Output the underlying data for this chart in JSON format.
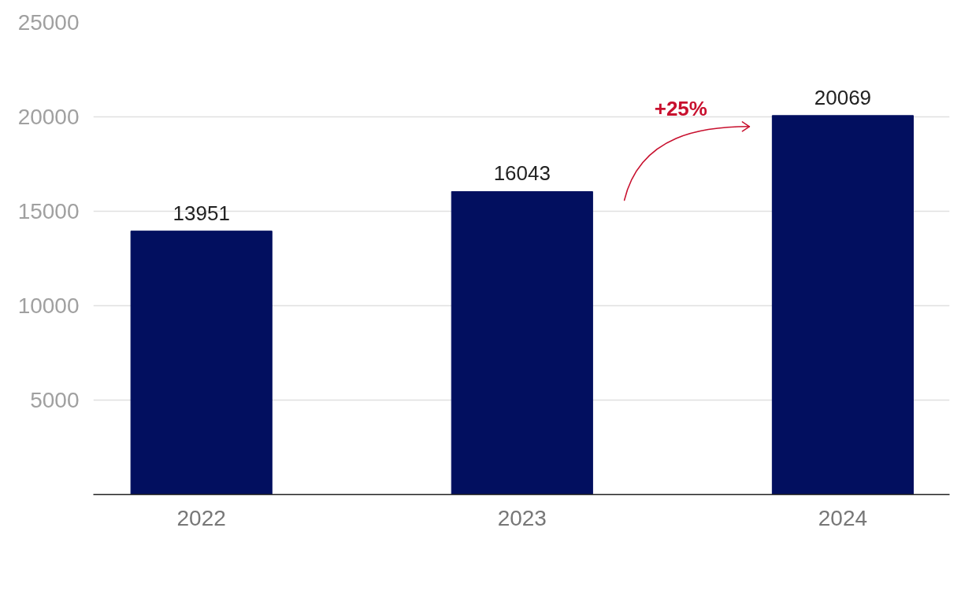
{
  "chart_data": {
    "type": "bar",
    "categories": [
      "2022",
      "2023",
      "2024"
    ],
    "values": [
      13951,
      16043,
      20069
    ],
    "color": "#020f5f",
    "ylim": [
      0,
      25000
    ],
    "yticks": [
      {
        "value": 0,
        "label": null
      },
      5000,
      10000,
      15000,
      20000,
      25000
    ],
    "grid": "y",
    "data_labels": true,
    "annotations": [
      "+25%"
    ]
  }
}
